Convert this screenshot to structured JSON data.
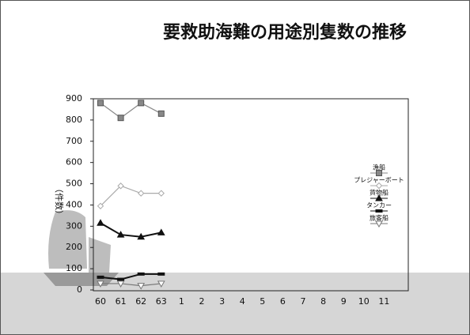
{
  "chart_data": {
    "type": "line",
    "title": "要救助海難の用途別隻数の推移",
    "y_label": "（件数）",
    "categories": [
      "60",
      "61",
      "62",
      "63",
      "1",
      "2",
      "3",
      "4",
      "5",
      "6",
      "7",
      "8",
      "9",
      "10",
      "11"
    ],
    "ylim": [
      0,
      900
    ],
    "yticks": [
      0,
      100,
      200,
      300,
      400,
      500,
      600,
      700,
      800,
      900
    ],
    "series": [
      {
        "name": "漁船",
        "color": "#888888",
        "marker": "square",
        "values": [
          880,
          810,
          880,
          830,
          null,
          null,
          null,
          null,
          null,
          null,
          null,
          null,
          null,
          null,
          null
        ]
      },
      {
        "name": "プレジャーボート",
        "color": "#aaaaaa",
        "marker": "diamond",
        "values": [
          395,
          490,
          455,
          455,
          null,
          null,
          null,
          null,
          null,
          null,
          null,
          null,
          null,
          null,
          null
        ]
      },
      {
        "name": "貨物船",
        "color": "#111111",
        "marker": "triangle",
        "values": [
          315,
          260,
          250,
          270,
          null,
          null,
          null,
          null,
          null,
          null,
          null,
          null,
          null,
          null,
          null
        ]
      },
      {
        "name": "タンカー",
        "color": "#111111",
        "marker": "bar",
        "values": [
          60,
          50,
          75,
          75,
          null,
          null,
          null,
          null,
          null,
          null,
          null,
          null,
          null,
          null,
          null
        ]
      },
      {
        "name": "旅客船",
        "color": "#777777",
        "marker": "invtriangle",
        "values": [
          30,
          30,
          20,
          30,
          null,
          null,
          null,
          null,
          null,
          null,
          null,
          null,
          null,
          null,
          null
        ]
      }
    ]
  }
}
